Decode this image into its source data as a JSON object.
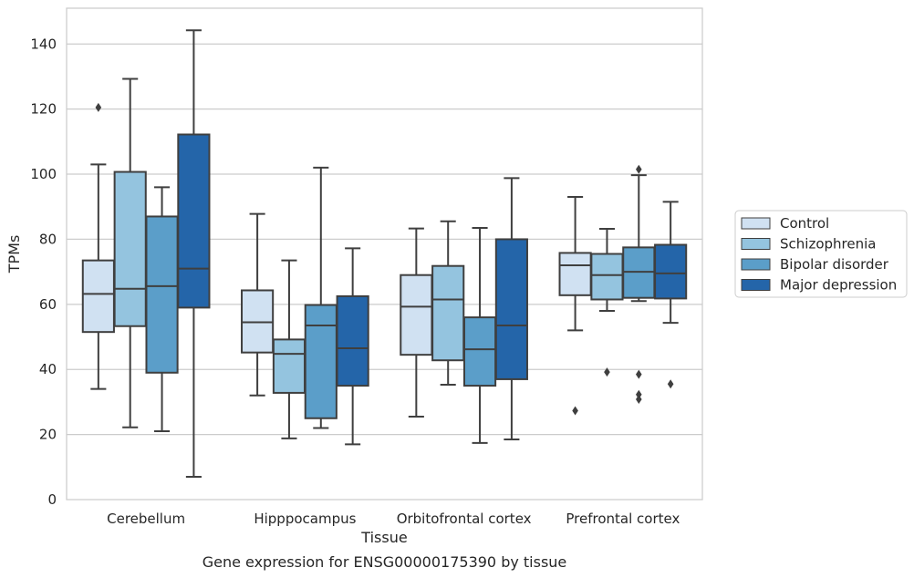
{
  "caption": "Gene expression for ENSG00000175390 by tissue",
  "chart_data": {
    "type": "box",
    "title": "",
    "xlabel": "Tissue",
    "ylabel": "TPMs",
    "ylim": [
      0,
      151
    ],
    "yticks": [
      0,
      20,
      40,
      60,
      80,
      100,
      120,
      140
    ],
    "grid": true,
    "legend_placement": "center-right outside",
    "categories": [
      "Cerebellum",
      "Hipppocampus",
      "Orbitofrontal cortex",
      "Prefrontal cortex"
    ],
    "series": [
      {
        "name": "Control",
        "color": "#d0e1f2",
        "boxes": [
          {
            "whislo": 34,
            "q1": 51.5,
            "med": 63.2,
            "q3": 73.5,
            "whishi": 103,
            "fliers": [
              120.5
            ]
          },
          {
            "whislo": 32,
            "q1": 45.2,
            "med": 54.5,
            "q3": 64.3,
            "whishi": 87.8,
            "fliers": []
          },
          {
            "whislo": 25.5,
            "q1": 44.5,
            "med": 59.3,
            "q3": 69.0,
            "whishi": 83.3,
            "fliers": []
          },
          {
            "whislo": 52,
            "q1": 62.8,
            "med": 72.0,
            "q3": 75.8,
            "whishi": 93,
            "fliers": [
              27.3
            ]
          }
        ]
      },
      {
        "name": "Schizophrenia",
        "color": "#94c4df",
        "boxes": [
          {
            "whislo": 22.2,
            "q1": 53.3,
            "med": 64.8,
            "q3": 100.7,
            "whishi": 129.3,
            "fliers": []
          },
          {
            "whislo": 18.8,
            "q1": 32.8,
            "med": 44.8,
            "q3": 49.2,
            "whishi": 73.5,
            "fliers": []
          },
          {
            "whislo": 35.3,
            "q1": 42.8,
            "med": 61.5,
            "q3": 71.8,
            "whishi": 85.5,
            "fliers": []
          },
          {
            "whislo": 58,
            "q1": 61.5,
            "med": 69.0,
            "q3": 75.5,
            "whishi": 83.2,
            "fliers": [
              39.2
            ]
          }
        ]
      },
      {
        "name": "Bipolar disorder",
        "color": "#5b9ec9",
        "boxes": [
          {
            "whislo": 21,
            "q1": 39,
            "med": 65.6,
            "q3": 87.0,
            "whishi": 96,
            "fliers": []
          },
          {
            "whislo": 22,
            "q1": 25,
            "med": 53.5,
            "q3": 59.8,
            "whishi": 102,
            "fliers": []
          },
          {
            "whislo": 17.4,
            "q1": 35,
            "med": 46.2,
            "q3": 56.0,
            "whishi": 83.5,
            "fliers": []
          },
          {
            "whislo": 61,
            "q1": 62,
            "med": 70.0,
            "q3": 77.5,
            "whishi": 99.7,
            "fliers": [
              101.5,
              38.5,
              32.3,
              30.8
            ]
          }
        ]
      },
      {
        "name": "Major depression",
        "color": "#2465a9",
        "boxes": [
          {
            "whislo": 7,
            "q1": 59,
            "med": 71.0,
            "q3": 112.2,
            "whishi": 144.2,
            "fliers": []
          },
          {
            "whislo": 17,
            "q1": 35,
            "med": 46.5,
            "q3": 62.5,
            "whishi": 77.2,
            "fliers": []
          },
          {
            "whislo": 18.5,
            "q1": 37,
            "med": 53.5,
            "q3": 80.0,
            "whishi": 98.8,
            "fliers": []
          },
          {
            "whislo": 54.3,
            "q1": 61.8,
            "med": 69.5,
            "q3": 78.3,
            "whishi": 91.5,
            "fliers": [
              35.5
            ]
          }
        ]
      }
    ]
  }
}
